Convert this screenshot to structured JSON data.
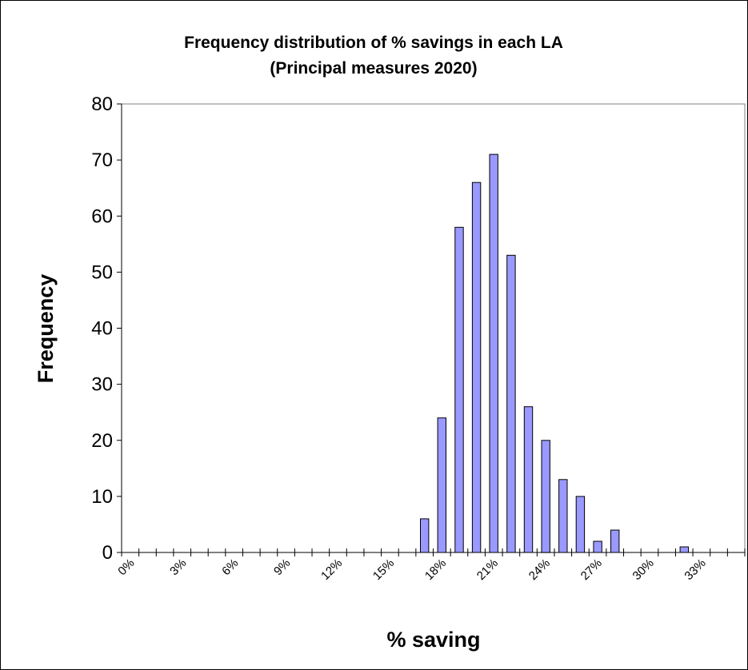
{
  "chart_data": {
    "type": "bar",
    "title": "Frequency distribution of % savings in each LA",
    "subtitle": "(Principal measures 2020)",
    "xlabel": "% saving",
    "ylabel": "Frequency",
    "ylim": [
      0,
      80
    ],
    "yticks": [
      "0",
      "10",
      "20",
      "30",
      "40",
      "50",
      "60",
      "70",
      "80"
    ],
    "xtick_labels": [
      "0%",
      "3%",
      "6%",
      "9%",
      "12%",
      "15%",
      "18%",
      "21%",
      "24%",
      "27%",
      "30%",
      "33%"
    ],
    "categories": [
      "0%",
      "1%",
      "2%",
      "3%",
      "4%",
      "5%",
      "6%",
      "7%",
      "8%",
      "9%",
      "10%",
      "11%",
      "12%",
      "13%",
      "14%",
      "15%",
      "16%",
      "17%",
      "18%",
      "19%",
      "20%",
      "21%",
      "22%",
      "23%",
      "24%",
      "25%",
      "26%",
      "27%",
      "28%",
      "29%",
      "30%",
      "31%",
      "32%",
      "33%",
      "34%",
      "35%"
    ],
    "values": [
      0,
      0,
      0,
      0,
      0,
      0,
      0,
      0,
      0,
      0,
      0,
      0,
      0,
      0,
      0,
      0,
      0,
      6,
      24,
      58,
      66,
      71,
      53,
      26,
      20,
      13,
      10,
      2,
      4,
      0,
      0,
      0,
      1,
      0,
      0,
      0
    ],
    "bar_color": "#9999ff",
    "bar_edge_color": "#000000",
    "grid": false,
    "legend": "none"
  }
}
